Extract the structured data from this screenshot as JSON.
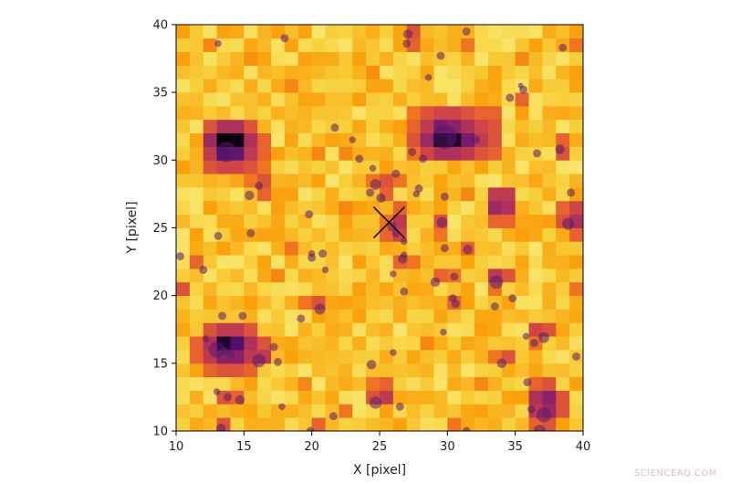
{
  "chart_data": {
    "type": "heatmap",
    "title": "",
    "xlabel": "X [pixel]",
    "ylabel": "Y [pixel]",
    "xlim": [
      10,
      40
    ],
    "ylim": [
      10,
      40
    ],
    "x_ticks": [
      10,
      15,
      20,
      25,
      30,
      35,
      40
    ],
    "y_ticks": [
      10,
      15,
      20,
      25,
      30,
      35,
      40
    ],
    "x_tick_labels": [
      "10",
      "15",
      "20",
      "25",
      "30",
      "35",
      "40"
    ],
    "y_tick_labels": [
      "10",
      "15",
      "20",
      "25",
      "30",
      "35",
      "40"
    ],
    "grid": false,
    "colormap": "inferno_r",
    "colormap_colors": [
      "#fcffa4",
      "#f7d13d",
      "#fb9b06",
      "#ed6925",
      "#cf4446",
      "#a52c60",
      "#781c6d",
      "#4a0c6b",
      "#000004"
    ],
    "pixel_size": 1,
    "background_level": 0.2,
    "bright_pixels": [
      {
        "x": 13,
        "y": 31,
        "v": 1.0
      },
      {
        "x": 14,
        "y": 31,
        "v": 0.98
      },
      {
        "x": 13,
        "y": 30,
        "v": 0.85
      },
      {
        "x": 14,
        "y": 30,
        "v": 0.8
      },
      {
        "x": 12,
        "y": 31,
        "v": 0.65
      },
      {
        "x": 15,
        "y": 31,
        "v": 0.6
      },
      {
        "x": 12,
        "y": 30,
        "v": 0.55
      },
      {
        "x": 15,
        "y": 30,
        "v": 0.55
      },
      {
        "x": 13,
        "y": 32,
        "v": 0.6
      },
      {
        "x": 14,
        "y": 32,
        "v": 0.6
      },
      {
        "x": 13,
        "y": 29,
        "v": 0.5
      },
      {
        "x": 14,
        "y": 29,
        "v": 0.5
      },
      {
        "x": 12,
        "y": 32,
        "v": 0.45
      },
      {
        "x": 15,
        "y": 32,
        "v": 0.45
      },
      {
        "x": 12,
        "y": 29,
        "v": 0.45
      },
      {
        "x": 15,
        "y": 29,
        "v": 0.45
      },
      {
        "x": 16,
        "y": 31,
        "v": 0.4
      },
      {
        "x": 16,
        "y": 30,
        "v": 0.4
      },
      {
        "x": 16,
        "y": 29,
        "v": 0.35
      },
      {
        "x": 29,
        "y": 31,
        "v": 1.0
      },
      {
        "x": 30,
        "y": 31,
        "v": 0.95
      },
      {
        "x": 29,
        "y": 32,
        "v": 0.75
      },
      {
        "x": 30,
        "y": 32,
        "v": 0.7
      },
      {
        "x": 31,
        "y": 31,
        "v": 0.75
      },
      {
        "x": 31,
        "y": 32,
        "v": 0.6
      },
      {
        "x": 28,
        "y": 31,
        "v": 0.65
      },
      {
        "x": 28,
        "y": 32,
        "v": 0.55
      },
      {
        "x": 29,
        "y": 30,
        "v": 0.6
      },
      {
        "x": 30,
        "y": 30,
        "v": 0.6
      },
      {
        "x": 31,
        "y": 30,
        "v": 0.55
      },
      {
        "x": 28,
        "y": 30,
        "v": 0.5
      },
      {
        "x": 29,
        "y": 33,
        "v": 0.5
      },
      {
        "x": 30,
        "y": 33,
        "v": 0.5
      },
      {
        "x": 31,
        "y": 33,
        "v": 0.45
      },
      {
        "x": 28,
        "y": 33,
        "v": 0.45
      },
      {
        "x": 32,
        "y": 31,
        "v": 0.55
      },
      {
        "x": 32,
        "y": 32,
        "v": 0.5
      },
      {
        "x": 32,
        "y": 30,
        "v": 0.45
      },
      {
        "x": 32,
        "y": 33,
        "v": 0.4
      },
      {
        "x": 27,
        "y": 31,
        "v": 0.45
      },
      {
        "x": 27,
        "y": 32,
        "v": 0.4
      },
      {
        "x": 33,
        "y": 31,
        "v": 0.45
      },
      {
        "x": 33,
        "y": 32,
        "v": 0.45
      },
      {
        "x": 33,
        "y": 30,
        "v": 0.4
      },
      {
        "x": 33,
        "y": 33,
        "v": 0.4
      },
      {
        "x": 27,
        "y": 30,
        "v": 0.35
      },
      {
        "x": 27,
        "y": 33,
        "v": 0.35
      },
      {
        "x": 13,
        "y": 16,
        "v": 0.95
      },
      {
        "x": 14,
        "y": 16,
        "v": 0.85
      },
      {
        "x": 13,
        "y": 15,
        "v": 0.7
      },
      {
        "x": 14,
        "y": 15,
        "v": 0.7
      },
      {
        "x": 12,
        "y": 16,
        "v": 0.6
      },
      {
        "x": 15,
        "y": 16,
        "v": 0.6
      },
      {
        "x": 12,
        "y": 15,
        "v": 0.55
      },
      {
        "x": 15,
        "y": 15,
        "v": 0.55
      },
      {
        "x": 13,
        "y": 17,
        "v": 0.55
      },
      {
        "x": 14,
        "y": 17,
        "v": 0.55
      },
      {
        "x": 13,
        "y": 14,
        "v": 0.45
      },
      {
        "x": 14,
        "y": 14,
        "v": 0.45
      },
      {
        "x": 11,
        "y": 16,
        "v": 0.4
      },
      {
        "x": 11,
        "y": 15,
        "v": 0.4
      },
      {
        "x": 12,
        "y": 14,
        "v": 0.4
      },
      {
        "x": 15,
        "y": 14,
        "v": 0.4
      },
      {
        "x": 16,
        "y": 15,
        "v": 0.55
      },
      {
        "x": 16,
        "y": 16,
        "v": 0.45
      },
      {
        "x": 12,
        "y": 17,
        "v": 0.45
      },
      {
        "x": 15,
        "y": 17,
        "v": 0.45
      },
      {
        "x": 33,
        "y": 26,
        "v": 0.65
      },
      {
        "x": 34,
        "y": 26,
        "v": 0.6
      },
      {
        "x": 33,
        "y": 27,
        "v": 0.55
      },
      {
        "x": 34,
        "y": 27,
        "v": 0.55
      },
      {
        "x": 33,
        "y": 25,
        "v": 0.4
      },
      {
        "x": 34,
        "y": 25,
        "v": 0.4
      },
      {
        "x": 39,
        "y": 25,
        "v": 0.6
      },
      {
        "x": 39,
        "y": 26,
        "v": 0.5
      },
      {
        "x": 38,
        "y": 25,
        "v": 0.45
      },
      {
        "x": 38,
        "y": 26,
        "v": 0.4
      },
      {
        "x": 39,
        "y": 24,
        "v": 0.4
      },
      {
        "x": 26,
        "y": 25,
        "v": 0.55
      },
      {
        "x": 26,
        "y": 24,
        "v": 0.5
      },
      {
        "x": 25,
        "y": 24,
        "v": 0.4
      },
      {
        "x": 26,
        "y": 26,
        "v": 0.4
      },
      {
        "x": 25,
        "y": 25,
        "v": 0.35
      },
      {
        "x": 25,
        "y": 28,
        "v": 0.45
      },
      {
        "x": 25,
        "y": 27,
        "v": 0.4
      },
      {
        "x": 24,
        "y": 28,
        "v": 0.35
      },
      {
        "x": 26,
        "y": 28,
        "v": 0.35
      },
      {
        "x": 26,
        "y": 22,
        "v": 0.4
      },
      {
        "x": 27,
        "y": 22,
        "v": 0.35
      },
      {
        "x": 29,
        "y": 25,
        "v": 0.45
      },
      {
        "x": 29,
        "y": 24,
        "v": 0.35
      },
      {
        "x": 30,
        "y": 19,
        "v": 0.4
      },
      {
        "x": 29,
        "y": 21,
        "v": 0.4
      },
      {
        "x": 30,
        "y": 21,
        "v": 0.35
      },
      {
        "x": 33,
        "y": 21,
        "v": 0.55
      },
      {
        "x": 34,
        "y": 21,
        "v": 0.45
      },
      {
        "x": 33,
        "y": 20,
        "v": 0.35
      },
      {
        "x": 31,
        "y": 23,
        "v": 0.4
      },
      {
        "x": 36,
        "y": 17,
        "v": 0.5
      },
      {
        "x": 37,
        "y": 17,
        "v": 0.45
      },
      {
        "x": 36,
        "y": 16,
        "v": 0.35
      },
      {
        "x": 37,
        "y": 12,
        "v": 0.7
      },
      {
        "x": 36,
        "y": 12,
        "v": 0.6
      },
      {
        "x": 37,
        "y": 11,
        "v": 0.65
      },
      {
        "x": 36,
        "y": 11,
        "v": 0.55
      },
      {
        "x": 38,
        "y": 12,
        "v": 0.45
      },
      {
        "x": 38,
        "y": 11,
        "v": 0.45
      },
      {
        "x": 37,
        "y": 13,
        "v": 0.45
      },
      {
        "x": 36,
        "y": 13,
        "v": 0.4
      },
      {
        "x": 37,
        "y": 10,
        "v": 0.45
      },
      {
        "x": 36,
        "y": 10,
        "v": 0.4
      },
      {
        "x": 25,
        "y": 12,
        "v": 0.55
      },
      {
        "x": 24,
        "y": 12,
        "v": 0.45
      },
      {
        "x": 25,
        "y": 13,
        "v": 0.4
      },
      {
        "x": 24,
        "y": 13,
        "v": 0.35
      },
      {
        "x": 34,
        "y": 15,
        "v": 0.45
      },
      {
        "x": 33,
        "y": 15,
        "v": 0.35
      },
      {
        "x": 16,
        "y": 28,
        "v": 0.45
      },
      {
        "x": 16,
        "y": 27,
        "v": 0.4
      },
      {
        "x": 15,
        "y": 28,
        "v": 0.35
      },
      {
        "x": 20,
        "y": 19,
        "v": 0.45
      },
      {
        "x": 19,
        "y": 19,
        "v": 0.35
      },
      {
        "x": 27,
        "y": 39,
        "v": 0.45
      },
      {
        "x": 27,
        "y": 38,
        "v": 0.4
      },
      {
        "x": 38,
        "y": 30,
        "v": 0.45
      },
      {
        "x": 38,
        "y": 31,
        "v": 0.4
      },
      {
        "x": 10,
        "y": 20,
        "v": 0.45
      },
      {
        "x": 11,
        "y": 22,
        "v": 0.4
      },
      {
        "x": 13,
        "y": 12,
        "v": 0.45
      },
      {
        "x": 14,
        "y": 12,
        "v": 0.4
      },
      {
        "x": 13,
        "y": 10,
        "v": 0.45
      },
      {
        "x": 20,
        "y": 10,
        "v": 0.4
      },
      {
        "x": 30,
        "y": 10,
        "v": 0.35
      },
      {
        "x": 22,
        "y": 11,
        "v": 0.35
      },
      {
        "x": 31,
        "y": 38,
        "v": 0.35
      },
      {
        "x": 39,
        "y": 38,
        "v": 0.35
      },
      {
        "x": 35,
        "y": 34,
        "v": 0.4
      },
      {
        "x": 18,
        "y": 35,
        "v": 0.3
      },
      {
        "x": 20,
        "y": 30,
        "v": 0.3
      },
      {
        "x": 22,
        "y": 30,
        "v": 0.3
      },
      {
        "x": 18,
        "y": 23,
        "v": 0.35
      },
      {
        "x": 17,
        "y": 21,
        "v": 0.3
      },
      {
        "x": 22,
        "y": 26,
        "v": 0.3
      },
      {
        "x": 31,
        "y": 27,
        "v": 0.3
      },
      {
        "x": 19,
        "y": 13,
        "v": 0.3
      },
      {
        "x": 28,
        "y": 16,
        "v": 0.3
      },
      {
        "x": 32,
        "y": 13,
        "v": 0.3
      },
      {
        "x": 39,
        "y": 20,
        "v": 0.35
      },
      {
        "x": 12,
        "y": 38,
        "v": 0.3
      },
      {
        "x": 15,
        "y": 37,
        "v": 0.28
      },
      {
        "x": 24,
        "y": 36,
        "v": 0.28
      },
      {
        "x": 35,
        "y": 37,
        "v": 0.3
      }
    ],
    "sources": [
      {
        "x": 13.1,
        "y": 38.6,
        "r": 0.25
      },
      {
        "x": 18.0,
        "y": 39.0,
        "r": 0.3
      },
      {
        "x": 27.1,
        "y": 39.3,
        "r": 0.35
      },
      {
        "x": 27.0,
        "y": 38.6,
        "r": 0.3
      },
      {
        "x": 31.4,
        "y": 39.5,
        "r": 0.3
      },
      {
        "x": 38.5,
        "y": 38.3,
        "r": 0.3
      },
      {
        "x": 29.5,
        "y": 37.7,
        "r": 0.3
      },
      {
        "x": 28.6,
        "y": 36.1,
        "r": 0.25
      },
      {
        "x": 35.6,
        "y": 35.2,
        "r": 0.3
      },
      {
        "x": 34.6,
        "y": 34.6,
        "r": 0.3
      },
      {
        "x": 35.4,
        "y": 35.5,
        "r": 0.2
      },
      {
        "x": 21.7,
        "y": 32.4,
        "r": 0.3
      },
      {
        "x": 23.0,
        "y": 31.5,
        "r": 0.25
      },
      {
        "x": 13.7,
        "y": 30.6,
        "r": 0.75
      },
      {
        "x": 29.8,
        "y": 31.7,
        "r": 0.9
      },
      {
        "x": 32.1,
        "y": 31.5,
        "r": 0.3
      },
      {
        "x": 36.6,
        "y": 30.5,
        "r": 0.3
      },
      {
        "x": 38.3,
        "y": 30.8,
        "r": 0.35
      },
      {
        "x": 23.5,
        "y": 30.1,
        "r": 0.3
      },
      {
        "x": 24.5,
        "y": 29.4,
        "r": 0.25
      },
      {
        "x": 26.2,
        "y": 29.0,
        "r": 0.3
      },
      {
        "x": 27.4,
        "y": 30.6,
        "r": 0.3
      },
      {
        "x": 28.2,
        "y": 30.1,
        "r": 0.3
      },
      {
        "x": 15.4,
        "y": 27.4,
        "r": 0.35
      },
      {
        "x": 16.1,
        "y": 28.1,
        "r": 0.3
      },
      {
        "x": 24.7,
        "y": 28.2,
        "r": 0.4
      },
      {
        "x": 24.3,
        "y": 27.6,
        "r": 0.3
      },
      {
        "x": 25.1,
        "y": 27.2,
        "r": 0.35
      },
      {
        "x": 27.9,
        "y": 27.9,
        "r": 0.3
      },
      {
        "x": 27.7,
        "y": 27.5,
        "r": 0.25
      },
      {
        "x": 29.8,
        "y": 27.3,
        "r": 0.3
      },
      {
        "x": 39.1,
        "y": 27.6,
        "r": 0.3
      },
      {
        "x": 19.8,
        "y": 26.0,
        "r": 0.3
      },
      {
        "x": 29.6,
        "y": 25.4,
        "r": 0.4
      },
      {
        "x": 25.9,
        "y": 25.1,
        "r": 0.35
      },
      {
        "x": 26.2,
        "y": 24.6,
        "r": 0.3
      },
      {
        "x": 38.9,
        "y": 25.3,
        "r": 0.45
      },
      {
        "x": 13.1,
        "y": 24.4,
        "r": 0.3
      },
      {
        "x": 15.5,
        "y": 24.6,
        "r": 0.3
      },
      {
        "x": 26.8,
        "y": 24.0,
        "r": 0.25
      },
      {
        "x": 29.8,
        "y": 23.5,
        "r": 0.3
      },
      {
        "x": 31.5,
        "y": 23.4,
        "r": 0.35
      },
      {
        "x": 20.0,
        "y": 22.8,
        "r": 0.3
      },
      {
        "x": 20.0,
        "y": 23.1,
        "r": 0.25
      },
      {
        "x": 20.8,
        "y": 23.1,
        "r": 0.3
      },
      {
        "x": 10.3,
        "y": 22.9,
        "r": 0.3
      },
      {
        "x": 26.7,
        "y": 22.7,
        "r": 0.35
      },
      {
        "x": 26.8,
        "y": 23.0,
        "r": 0.25
      },
      {
        "x": 12.0,
        "y": 21.9,
        "r": 0.3
      },
      {
        "x": 21.0,
        "y": 21.9,
        "r": 0.25
      },
      {
        "x": 26.0,
        "y": 21.6,
        "r": 0.25
      },
      {
        "x": 30.5,
        "y": 21.4,
        "r": 0.3
      },
      {
        "x": 33.6,
        "y": 21.0,
        "r": 0.5
      },
      {
        "x": 29.1,
        "y": 21.0,
        "r": 0.35
      },
      {
        "x": 26.8,
        "y": 20.3,
        "r": 0.3
      },
      {
        "x": 30.4,
        "y": 19.8,
        "r": 0.3
      },
      {
        "x": 30.6,
        "y": 19.4,
        "r": 0.3
      },
      {
        "x": 33.5,
        "y": 19.2,
        "r": 0.3
      },
      {
        "x": 34.8,
        "y": 19.8,
        "r": 0.3
      },
      {
        "x": 20.6,
        "y": 19.0,
        "r": 0.4
      },
      {
        "x": 19.2,
        "y": 18.3,
        "r": 0.3
      },
      {
        "x": 13.4,
        "y": 18.5,
        "r": 0.3
      },
      {
        "x": 14.9,
        "y": 18.5,
        "r": 0.3
      },
      {
        "x": 29.7,
        "y": 17.3,
        "r": 0.25
      },
      {
        "x": 35.8,
        "y": 17.0,
        "r": 0.25
      },
      {
        "x": 37.1,
        "y": 16.9,
        "r": 0.4
      },
      {
        "x": 12.2,
        "y": 16.8,
        "r": 0.25
      },
      {
        "x": 17.2,
        "y": 16.2,
        "r": 0.3
      },
      {
        "x": 36.4,
        "y": 16.5,
        "r": 0.3
      },
      {
        "x": 13.0,
        "y": 16.0,
        "r": 0.6
      },
      {
        "x": 13.6,
        "y": 15.9,
        "r": 0.3
      },
      {
        "x": 14.0,
        "y": 15.7,
        "r": 0.35
      },
      {
        "x": 26.0,
        "y": 15.8,
        "r": 0.25
      },
      {
        "x": 39.5,
        "y": 15.5,
        "r": 0.3
      },
      {
        "x": 16.1,
        "y": 15.2,
        "r": 0.5
      },
      {
        "x": 17.5,
        "y": 15.1,
        "r": 0.3
      },
      {
        "x": 34.0,
        "y": 15.0,
        "r": 0.35
      },
      {
        "x": 24.4,
        "y": 14.9,
        "r": 0.35
      },
      {
        "x": 35.9,
        "y": 13.6,
        "r": 0.3
      },
      {
        "x": 13.0,
        "y": 12.9,
        "r": 0.25
      },
      {
        "x": 13.8,
        "y": 12.5,
        "r": 0.3
      },
      {
        "x": 14.7,
        "y": 12.3,
        "r": 0.35
      },
      {
        "x": 24.7,
        "y": 12.1,
        "r": 0.45
      },
      {
        "x": 26.5,
        "y": 11.8,
        "r": 0.3
      },
      {
        "x": 17.8,
        "y": 11.8,
        "r": 0.25
      },
      {
        "x": 36.2,
        "y": 11.6,
        "r": 0.3
      },
      {
        "x": 37.1,
        "y": 11.2,
        "r": 0.55
      },
      {
        "x": 21.6,
        "y": 11.1,
        "r": 0.3
      },
      {
        "x": 13.3,
        "y": 10.2,
        "r": 0.35
      },
      {
        "x": 19.9,
        "y": 10.0,
        "r": 0.3
      },
      {
        "x": 31.4,
        "y": 10.0,
        "r": 0.3
      },
      {
        "x": 36.8,
        "y": 10.0,
        "r": 0.45
      }
    ],
    "marker": {
      "type": "x",
      "x": 25.7,
      "y": 25.4
    }
  },
  "colors": {
    "source_fill": "#5a1a6e",
    "marker": "#111111",
    "axis": "#000000"
  },
  "watermark": "SCIENCEAQ.COM"
}
